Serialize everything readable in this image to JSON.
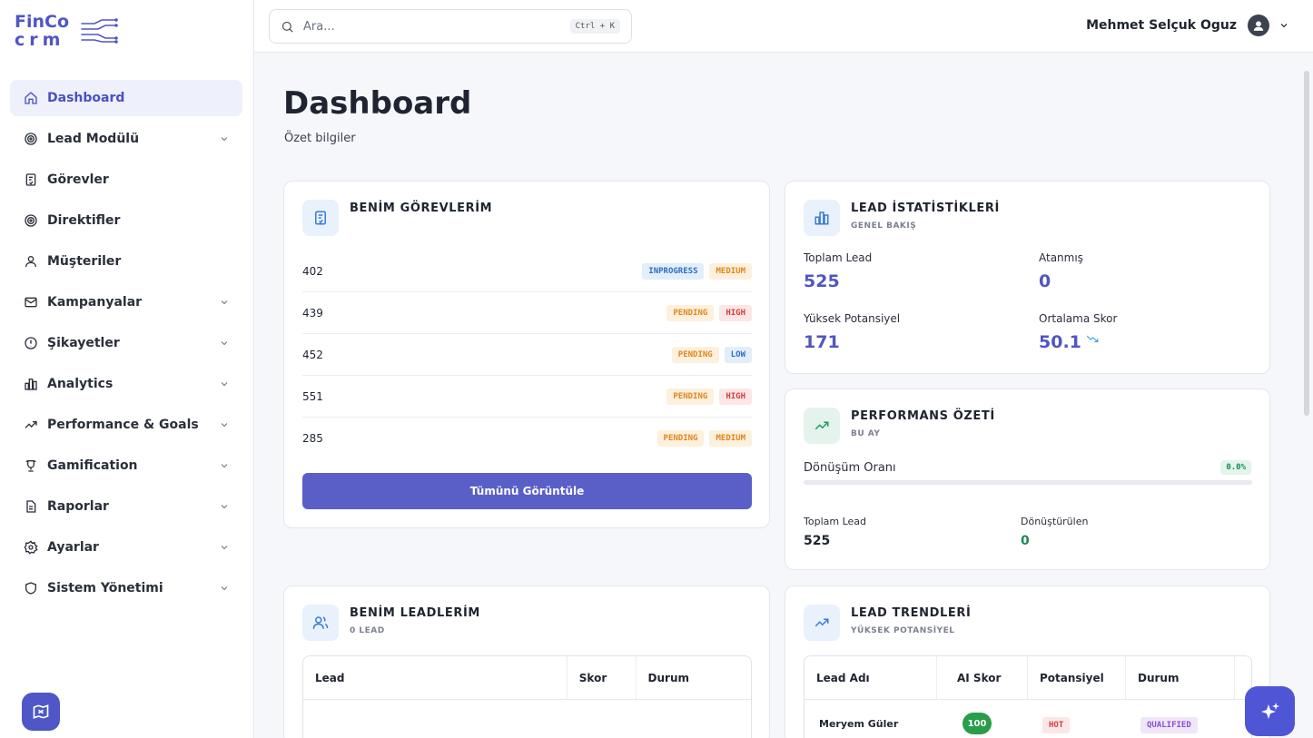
{
  "app": {
    "logo_line1": "FinCo",
    "logo_line2": "crm"
  },
  "sidebar": {
    "items": [
      {
        "label": "Dashboard",
        "icon": "home-icon",
        "active": true,
        "expandable": false
      },
      {
        "label": "Lead Modülü",
        "icon": "target-icon",
        "expandable": true
      },
      {
        "label": "Görevler",
        "icon": "clipboard-check-icon",
        "expandable": false
      },
      {
        "label": "Direktifler",
        "icon": "target-icon",
        "expandable": false
      },
      {
        "label": "Müşteriler",
        "icon": "user-icon",
        "expandable": false
      },
      {
        "label": "Kampanyalar",
        "icon": "mail-icon",
        "expandable": true
      },
      {
        "label": "Şikayetler",
        "icon": "alert-circle-icon",
        "expandable": true
      },
      {
        "label": "Analytics",
        "icon": "bar-chart-icon",
        "expandable": true
      },
      {
        "label": "Performance & Goals",
        "icon": "trending-up-icon",
        "expandable": true
      },
      {
        "label": "Gamification",
        "icon": "trophy-icon",
        "expandable": true
      },
      {
        "label": "Raporlar",
        "icon": "file-text-icon",
        "expandable": true
      },
      {
        "label": "Ayarlar",
        "icon": "settings-icon",
        "expandable": true
      },
      {
        "label": "Sistem Yönetimi",
        "icon": "shield-icon",
        "expandable": true
      }
    ]
  },
  "topbar": {
    "search_placeholder": "Ara...",
    "shortcut": "Ctrl + K",
    "user_name": "Mehmet Selçuk Oguz"
  },
  "page": {
    "title": "Dashboard",
    "subtitle": "Özet bilgiler"
  },
  "tasks": {
    "title": "BENİM GÖREVLERİM",
    "rows": [
      {
        "id": "402",
        "status": "INPROGRESS",
        "priority": "MEDIUM"
      },
      {
        "id": "439",
        "status": "PENDING",
        "priority": "HIGH"
      },
      {
        "id": "452",
        "status": "PENDING",
        "priority": "LOW"
      },
      {
        "id": "551",
        "status": "PENDING",
        "priority": "HIGH"
      },
      {
        "id": "285",
        "status": "PENDING",
        "priority": "MEDIUM"
      }
    ],
    "view_all": "Tümünü Görüntüle"
  },
  "lead_stats": {
    "title": "LEAD İSTATİSTİKLERİ",
    "subtitle": "GENEL BAKIŞ",
    "total_label": "Toplam Lead",
    "total_value": "525",
    "assigned_label": "Atanmış",
    "assigned_value": "0",
    "high_label": "Yüksek Potansiyel",
    "high_value": "171",
    "avg_label": "Ortalama Skor",
    "avg_value": "50.1"
  },
  "performance": {
    "title": "PERFORMANS ÖZETİ",
    "subtitle": "BU AY",
    "conversion_label": "Dönüşüm Oranı",
    "conversion_value": "0.0%",
    "total_label": "Toplam Lead",
    "total_value": "525",
    "converted_label": "Dönüştürülen",
    "converted_value": "0"
  },
  "my_leads": {
    "title": "BENİM LEADLERİM",
    "subtitle": "0 LEAD",
    "columns": [
      "Lead",
      "Skor",
      "Durum"
    ]
  },
  "lead_trends": {
    "title": "LEAD TRENDLERİ",
    "subtitle": "YÜKSEK POTANSİYEL",
    "columns": [
      "Lead Adı",
      "AI Skor",
      "Potansiyel",
      "Durum"
    ],
    "rows": [
      {
        "name": "Meryem Güler",
        "score": "100",
        "potential": "HOT",
        "status": "QUALIFIED"
      }
    ]
  },
  "colors": {
    "accent": "#4f56c5",
    "button": "#5a5fc8",
    "score_green": "#2a9d4a"
  }
}
